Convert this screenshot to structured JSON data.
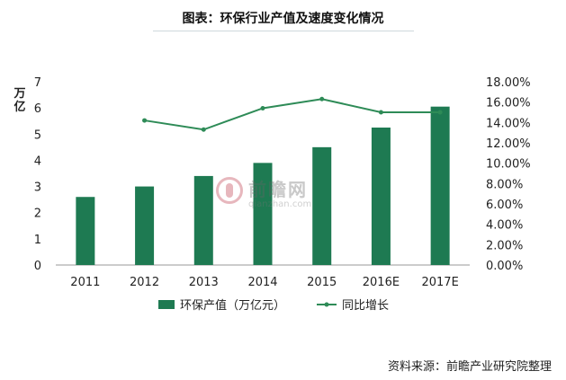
{
  "title": "图表：环保行业产值及速度变化情况",
  "source": "资料来源：前瞻产业研究院整理",
  "watermark": {
    "name": "前瞻网",
    "url": "qianzhan.com"
  },
  "chart_data": {
    "type": "bar+line",
    "categories": [
      "2011",
      "2012",
      "2013",
      "2014",
      "2015",
      "2016E",
      "2017E"
    ],
    "series": [
      {
        "name": "环保产值（万亿元）",
        "type": "bar",
        "axis": "left",
        "color": "#1e7a52",
        "values": [
          2.6,
          3.0,
          3.4,
          3.9,
          4.5,
          5.25,
          6.05
        ]
      },
      {
        "name": "同比增长",
        "type": "line",
        "axis": "right",
        "color": "#2e8b57",
        "values": [
          null,
          0.142,
          0.133,
          0.154,
          0.163,
          0.15,
          0.15
        ]
      }
    ],
    "ylabel": "万亿",
    "ylim": [
      0,
      7
    ],
    "yticks": [
      "0",
      "1",
      "2",
      "3",
      "4",
      "5",
      "6",
      "7"
    ],
    "y2lim": [
      0,
      0.18
    ],
    "y2ticks": [
      "0.00%",
      "2.00%",
      "4.00%",
      "6.00%",
      "8.00%",
      "10.00%",
      "12.00%",
      "14.00%",
      "16.00%",
      "18.00%"
    ],
    "legend_position": "bottom",
    "grid": false
  }
}
